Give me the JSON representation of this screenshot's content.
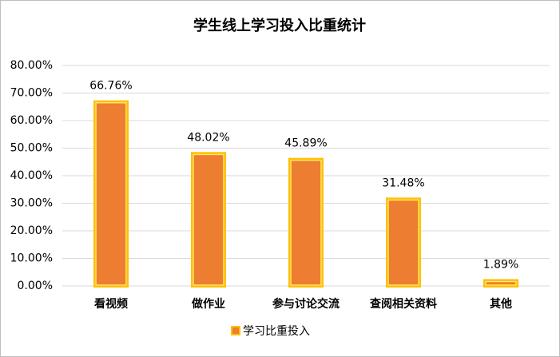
{
  "chart_data": {
    "type": "bar",
    "title": "学生线上学习投入比重统计",
    "categories": [
      "看视频",
      "做作业",
      "参与讨论交流",
      "查阅相关资料",
      "其他"
    ],
    "series": [
      {
        "name": "学习比重投入",
        "color": "#ED7D31",
        "border_color": "#FFC000",
        "values": [
          66.76,
          48.02,
          45.89,
          31.48,
          1.89
        ],
        "value_labels": [
          "66.76%",
          "48.02%",
          "45.89%",
          "31.48%",
          "1.89%"
        ]
      }
    ],
    "ylim": [
      0,
      80
    ],
    "yticks": [
      {
        "value": 0,
        "label": "0.00%"
      },
      {
        "value": 10,
        "label": "10.00%"
      },
      {
        "value": 20,
        "label": "20.00%"
      },
      {
        "value": 30,
        "label": "30.00%"
      },
      {
        "value": 40,
        "label": "40.00%"
      },
      {
        "value": 50,
        "label": "50.00%"
      },
      {
        "value": 60,
        "label": "60.00%"
      },
      {
        "value": 70,
        "label": "70.00%"
      },
      {
        "value": 80,
        "label": "80.00%"
      }
    ],
    "grid": true,
    "legend": "bottom"
  }
}
